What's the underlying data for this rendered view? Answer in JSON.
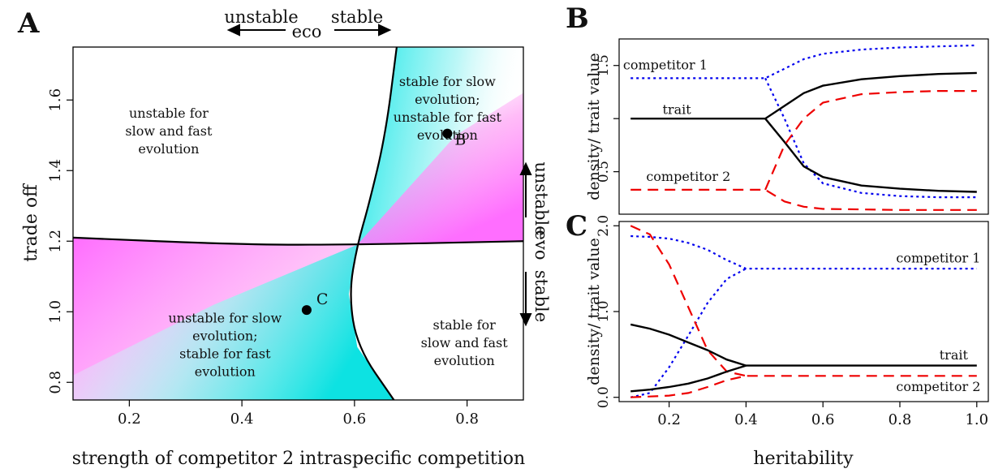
{
  "chart_data": [
    {
      "panel": "A",
      "type": "heatmap",
      "xlabel": "strength of competitor 2 intraspecific competition",
      "ylabel": "trade off",
      "xlim": [
        0.1,
        0.9
      ],
      "ylim": [
        0.75,
        1.75
      ],
      "xticks": [
        0.2,
        0.4,
        0.6,
        0.8
      ],
      "yticks": [
        0.8,
        1.0,
        1.2,
        1.4,
        1.6
      ],
      "xtick_labels": [
        "0.2",
        "0.4",
        "0.6",
        "0.8"
      ],
      "ytick_labels": [
        "0.8",
        "1.0",
        "1.2",
        "1.4",
        "1.6"
      ],
      "colors": {
        "eco_stable_evo_unstable": "#00e0e0",
        "evo_unstable_eco_unstable": "#ff66ff",
        "boundary": "#000000"
      },
      "boundaries": {
        "eco": [
          [
            0.675,
            1.75
          ],
          [
            0.655,
            1.5
          ],
          [
            0.625,
            1.3
          ],
          [
            0.605,
            1.19
          ],
          [
            0.59,
            1.05
          ],
          [
            0.605,
            0.9
          ],
          [
            0.67,
            0.75
          ]
        ],
        "evo": [
          [
            0.1,
            1.21
          ],
          [
            0.4,
            1.19
          ],
          [
            0.6,
            1.19
          ],
          [
            0.9,
            1.2
          ]
        ]
      },
      "regions": [
        {
          "id": "top-left",
          "text": [
            "unstable for",
            "slow and fast",
            "evolution"
          ],
          "x": 0.27,
          "y": 1.55
        },
        {
          "id": "top-right",
          "text": [
            "stable for slow",
            "evolution;",
            "unstable for fast",
            "evolution"
          ],
          "x": 0.765,
          "y": 1.64
        },
        {
          "id": "bottom-left",
          "text": [
            "unstable for slow",
            "evolution;",
            "stable for fast",
            "evolution"
          ],
          "x": 0.37,
          "y": 0.97
        },
        {
          "id": "bottom-right",
          "text": [
            "stable for",
            "slow and fast",
            "evolution"
          ],
          "x": 0.795,
          "y": 0.95
        }
      ],
      "points": [
        {
          "label": "B",
          "x": 0.765,
          "y": 1.505
        },
        {
          "label": "C",
          "x": 0.515,
          "y": 1.005
        }
      ],
      "annotations": {
        "eco_unstable": "unstable",
        "eco_stable": "stable",
        "eco": "eco",
        "evo_unstable": "unstable",
        "evo_stable": "stable",
        "evo": "evo"
      }
    },
    {
      "panel": "B",
      "type": "line",
      "ylabel": "density/ trait value",
      "xlim": [
        0.07,
        1.03
      ],
      "ylim": [
        0.1,
        1.75
      ],
      "yticks": [
        0.5,
        1.0,
        1.5
      ],
      "ytick_labels": [
        "0.5",
        "",
        "1.5"
      ],
      "series": [
        {
          "name": "competitor 1",
          "color": "#0000ee",
          "dash": "dotted",
          "x": [
            0.1,
            0.2,
            0.3,
            0.4,
            0.45,
            0.5,
            0.55,
            0.6,
            0.7,
            0.8,
            0.9,
            1.0
          ],
          "values": [
            1.38,
            1.38,
            1.38,
            1.38,
            1.38,
            1.47,
            1.56,
            1.61,
            1.65,
            1.67,
            1.68,
            1.69
          ]
        },
        {
          "name": "",
          "color": "#0000ee",
          "dash": "dotted",
          "x": [
            0.45,
            0.5,
            0.55,
            0.6,
            0.7,
            0.8,
            0.9,
            1.0
          ],
          "values": [
            1.38,
            1.0,
            0.58,
            0.39,
            0.3,
            0.27,
            0.26,
            0.26
          ]
        },
        {
          "name": "trait",
          "color": "#000000",
          "dash": "solid",
          "x": [
            0.1,
            0.2,
            0.3,
            0.4,
            0.45,
            0.5,
            0.55,
            0.6,
            0.7,
            0.8,
            0.9,
            1.0
          ],
          "values": [
            1.0,
            1.0,
            1.0,
            1.0,
            1.0,
            1.12,
            1.24,
            1.31,
            1.37,
            1.4,
            1.42,
            1.43
          ]
        },
        {
          "name": "",
          "color": "#000000",
          "dash": "solid",
          "x": [
            0.45,
            0.5,
            0.55,
            0.6,
            0.7,
            0.8,
            0.9,
            1.0
          ],
          "values": [
            1.0,
            0.78,
            0.55,
            0.45,
            0.37,
            0.34,
            0.32,
            0.31
          ]
        },
        {
          "name": "",
          "color": "#ee0000",
          "dash": "dashed",
          "x": [
            0.45,
            0.5,
            0.55,
            0.6,
            0.7,
            0.8,
            0.9,
            1.0
          ],
          "values": [
            0.33,
            0.75,
            1.0,
            1.15,
            1.23,
            1.25,
            1.26,
            1.26
          ]
        },
        {
          "name": "competitor 2",
          "color": "#ee0000",
          "dash": "dashed",
          "x": [
            0.1,
            0.2,
            0.3,
            0.4,
            0.45,
            0.5,
            0.55,
            0.6,
            0.7,
            0.8,
            0.9,
            1.0
          ],
          "values": [
            0.33,
            0.33,
            0.33,
            0.33,
            0.33,
            0.22,
            0.17,
            0.15,
            0.145,
            0.14,
            0.14,
            0.14
          ]
        }
      ],
      "labels": [
        {
          "text": "competitor 1",
          "x": 0.19,
          "y": 1.5
        },
        {
          "text": "trait",
          "x": 0.22,
          "y": 1.08
        },
        {
          "text": "competitor 2",
          "x": 0.25,
          "y": 0.45
        }
      ]
    },
    {
      "panel": "C",
      "type": "line",
      "xlabel": "heritability",
      "ylabel": "density/ trait value",
      "xlim": [
        0.07,
        1.03
      ],
      "ylim": [
        -0.05,
        2.05
      ],
      "xticks": [
        0.2,
        0.4,
        0.6,
        0.8,
        1.0
      ],
      "xtick_labels": [
        "0.2",
        "0.4",
        "0.6",
        "0.8",
        "1.0"
      ],
      "yticks": [
        0.0,
        1.0,
        2.0
      ],
      "ytick_labels": [
        "0.0",
        "1.0",
        "2.0"
      ],
      "series": [
        {
          "name": "competitor 1",
          "color": "#0000ee",
          "dash": "dotted",
          "x": [
            0.1,
            0.15,
            0.2,
            0.25,
            0.3,
            0.35,
            0.4,
            0.5,
            0.6,
            0.7,
            0.8,
            0.9,
            1.0
          ],
          "values": [
            1.88,
            1.87,
            1.85,
            1.8,
            1.72,
            1.6,
            1.5,
            1.5,
            1.5,
            1.5,
            1.5,
            1.5,
            1.5
          ]
        },
        {
          "name": "",
          "color": "#0000ee",
          "dash": "dotted",
          "x": [
            0.1,
            0.15,
            0.2,
            0.25,
            0.3,
            0.35,
            0.4
          ],
          "values": [
            0.0,
            0.05,
            0.35,
            0.72,
            1.1,
            1.38,
            1.5
          ]
        },
        {
          "name": "",
          "color": "#ee0000",
          "dash": "dashed",
          "x": [
            0.1,
            0.15,
            0.2,
            0.25,
            0.3,
            0.35,
            0.4
          ],
          "values": [
            2.0,
            1.9,
            1.55,
            1.05,
            0.55,
            0.3,
            0.25
          ]
        },
        {
          "name": "competitor 2",
          "color": "#ee0000",
          "dash": "dashed",
          "x": [
            0.1,
            0.15,
            0.2,
            0.25,
            0.3,
            0.35,
            0.4,
            0.5,
            0.6,
            0.7,
            0.8,
            0.9,
            1.0
          ],
          "values": [
            0.0,
            0.01,
            0.02,
            0.05,
            0.12,
            0.2,
            0.25,
            0.25,
            0.25,
            0.25,
            0.25,
            0.25,
            0.25
          ]
        },
        {
          "name": "trait",
          "color": "#000000",
          "dash": "solid",
          "x": [
            0.1,
            0.15,
            0.2,
            0.25,
            0.3,
            0.35,
            0.4,
            0.5,
            0.6,
            0.7,
            0.8,
            0.9,
            1.0
          ],
          "values": [
            0.85,
            0.8,
            0.73,
            0.64,
            0.55,
            0.44,
            0.37,
            0.37,
            0.37,
            0.37,
            0.37,
            0.37,
            0.37
          ]
        },
        {
          "name": "",
          "color": "#000000",
          "dash": "solid",
          "x": [
            0.1,
            0.15,
            0.2,
            0.25,
            0.3,
            0.35,
            0.4
          ],
          "values": [
            0.07,
            0.09,
            0.12,
            0.16,
            0.22,
            0.3,
            0.37
          ]
        }
      ],
      "labels": [
        {
          "text": "competitor 1",
          "x": 0.9,
          "y": 1.62
        },
        {
          "text": "trait",
          "x": 0.94,
          "y": 0.49
        },
        {
          "text": "competitor 2",
          "x": 0.9,
          "y": 0.12
        }
      ]
    }
  ],
  "panel_letters": {
    "a": "A",
    "b": "B",
    "c": "C"
  }
}
